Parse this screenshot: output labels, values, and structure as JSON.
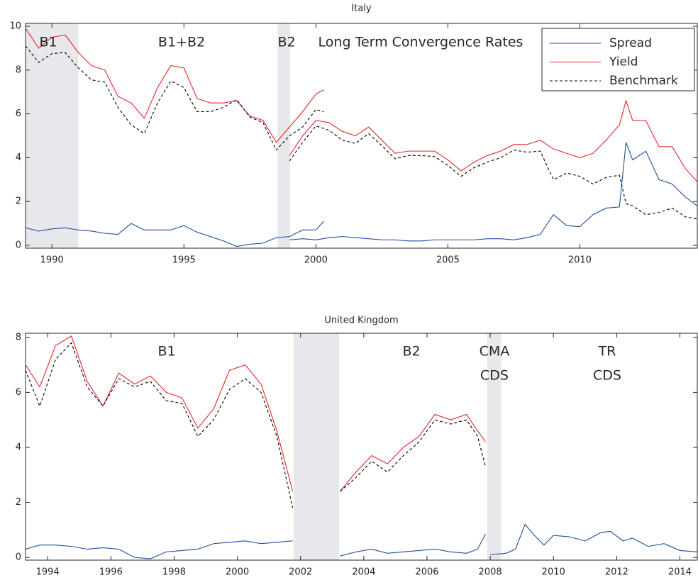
{
  "chart_data": [
    {
      "type": "line",
      "title": "Italy",
      "x": [
        1989.0,
        1989.5,
        1990.0,
        1990.5,
        1991.0,
        1991.5,
        1992.0,
        1992.5,
        1993.0,
        1993.5,
        1994.0,
        1994.5,
        1995.0,
        1995.5,
        1996.0,
        1996.5,
        1997.0,
        1997.5,
        1998.0,
        1998.5,
        1999.0,
        1999.5,
        2000.0,
        2000.3,
        null,
        1999.0,
        1999.5,
        2000.0,
        2000.5,
        2001.0,
        2001.5,
        2002.0,
        2002.5,
        2003.0,
        2003.5,
        2004.0,
        2004.5,
        2005.0,
        2005.5,
        2006.0,
        2006.5,
        2007.0,
        2007.5,
        2008.0,
        2008.5,
        2009.0,
        2009.5,
        2010.0,
        2010.5,
        2011.0,
        2011.5,
        2011.75,
        2012.0,
        2012.5,
        2013.0,
        2013.5,
        2014.0,
        2014.45
      ],
      "series": [
        {
          "name": "Spread",
          "color": "#1f4e9e",
          "linestyle": "solid",
          "values": [
            0.8,
            0.65,
            0.75,
            0.8,
            0.7,
            0.65,
            0.55,
            0.5,
            1.0,
            0.7,
            0.7,
            0.7,
            0.9,
            0.6,
            0.4,
            0.2,
            -0.05,
            0.05,
            0.1,
            0.35,
            0.4,
            0.7,
            0.7,
            1.1,
            null,
            0.25,
            0.3,
            0.25,
            0.35,
            0.4,
            0.35,
            0.3,
            0.25,
            0.25,
            0.2,
            0.2,
            0.25,
            0.25,
            0.25,
            0.25,
            0.3,
            0.3,
            0.25,
            0.35,
            0.5,
            1.4,
            0.9,
            0.85,
            1.4,
            1.7,
            1.75,
            4.7,
            3.9,
            4.3,
            3.0,
            2.8,
            2.2,
            1.8
          ]
        },
        {
          "name": "Yield",
          "color": "#e8262a",
          "linestyle": "solid",
          "values": [
            9.9,
            9.0,
            9.5,
            9.6,
            8.8,
            8.2,
            8.0,
            6.8,
            6.5,
            5.8,
            7.2,
            8.2,
            8.1,
            6.7,
            6.5,
            6.5,
            6.6,
            5.9,
            5.7,
            4.7,
            5.4,
            6.1,
            6.9,
            7.1,
            null,
            4.1,
            5.0,
            5.7,
            5.6,
            5.2,
            5.0,
            5.4,
            4.8,
            4.2,
            4.3,
            4.3,
            4.3,
            3.9,
            3.4,
            3.8,
            4.1,
            4.3,
            4.6,
            4.6,
            4.8,
            4.4,
            4.2,
            4.0,
            4.2,
            4.8,
            5.5,
            6.6,
            5.7,
            5.7,
            4.5,
            4.5,
            3.5,
            2.9
          ]
        },
        {
          "name": "Benchmark",
          "color": "#000000",
          "linestyle": "dashed",
          "values": [
            9.1,
            8.35,
            8.75,
            8.8,
            8.1,
            7.55,
            7.45,
            6.3,
            5.5,
            5.1,
            6.5,
            7.5,
            7.2,
            6.1,
            6.1,
            6.3,
            6.65,
            5.85,
            5.6,
            4.35,
            5.0,
            5.4,
            6.2,
            6.1,
            null,
            3.85,
            4.7,
            5.45,
            5.25,
            4.8,
            4.65,
            5.1,
            4.55,
            3.95,
            4.1,
            4.1,
            4.05,
            3.65,
            3.15,
            3.55,
            3.8,
            4.0,
            4.35,
            4.25,
            4.3,
            3.0,
            3.3,
            3.15,
            2.8,
            3.1,
            3.2,
            1.9,
            1.8,
            1.4,
            1.5,
            1.7,
            1.3,
            1.2
          ]
        }
      ],
      "xlim": [
        1989.0,
        2014.45
      ],
      "xticks": [
        1990,
        1995,
        2000,
        2005,
        2010
      ],
      "ylim": [
        -0.13,
        10.13
      ],
      "yticks": [
        0,
        2,
        4,
        6,
        8,
        10
      ],
      "shaded": [
        [
          1989.0,
          1991.0
        ],
        [
          1998.55,
          1999.02
        ]
      ],
      "shade_color": "#e8e8ec",
      "annotations": [
        "B1",
        "B1+B2",
        "B2",
        "Long Term Convergence Rates"
      ],
      "legend": "upper right"
    },
    {
      "type": "line",
      "title": "United Kingdom",
      "x": [
        1993.3,
        1993.75,
        1994.25,
        1994.75,
        1995.25,
        1995.75,
        1996.25,
        1996.75,
        1997.25,
        1997.75,
        1998.25,
        1998.75,
        1999.25,
        1999.75,
        2000.25,
        2000.75,
        2001.25,
        2001.75,
        null,
        2003.25,
        2003.75,
        2004.25,
        2004.75,
        2005.25,
        2005.75,
        2006.25,
        2006.75,
        2007.25,
        2007.6,
        2007.85,
        null,
        2008.0,
        2008.5,
        2008.8,
        2009.1,
        2009.4,
        2009.7,
        2010.0,
        2010.5,
        2011.0,
        2011.5,
        2011.8,
        2012.2,
        2012.5,
        2013.0,
        2013.5,
        2014.0,
        2014.55
      ],
      "series": [
        {
          "color": "#1f4e9e",
          "linestyle": "solid",
          "values": [
            0.3,
            0.45,
            0.45,
            0.4,
            0.3,
            0.35,
            0.3,
            0.0,
            -0.05,
            0.2,
            0.25,
            0.3,
            0.5,
            0.55,
            0.6,
            0.5,
            0.55,
            0.6,
            null,
            0.05,
            0.2,
            0.3,
            0.15,
            0.2,
            0.25,
            0.3,
            0.2,
            0.15,
            0.3,
            0.85,
            null,
            0.1,
            0.15,
            0.3,
            1.2,
            0.8,
            0.45,
            0.8,
            0.75,
            0.6,
            0.9,
            0.95,
            0.6,
            0.7,
            0.4,
            0.5,
            0.25,
            0.2
          ]
        },
        {
          "color": "#e8262a",
          "linestyle": "solid",
          "values": [
            7.0,
            6.2,
            7.7,
            8.05,
            6.4,
            5.5,
            6.7,
            6.3,
            6.6,
            6.0,
            5.8,
            4.7,
            5.4,
            6.8,
            7.0,
            6.3,
            4.6,
            2.4,
            null,
            2.4,
            3.1,
            3.7,
            3.4,
            4.0,
            4.4,
            5.2,
            5.0,
            5.2,
            4.6,
            4.2,
            null,
            null,
            null,
            null,
            null,
            null,
            null,
            null,
            null,
            null,
            null,
            null,
            null,
            null,
            null,
            null,
            null,
            null
          ]
        },
        {
          "color": "#000000",
          "linestyle": "dashed",
          "values": [
            6.8,
            5.5,
            7.2,
            7.8,
            6.2,
            5.5,
            6.5,
            6.2,
            6.4,
            5.7,
            5.6,
            4.4,
            5.0,
            6.1,
            6.5,
            6.0,
            4.4,
            1.8,
            null,
            2.4,
            2.9,
            3.5,
            3.1,
            3.7,
            4.2,
            5.0,
            4.85,
            5.0,
            4.4,
            3.3,
            null,
            null,
            null,
            null,
            null,
            null,
            null,
            null,
            null,
            null,
            null,
            null,
            null,
            null,
            null,
            null,
            null,
            null
          ]
        }
      ],
      "xlim": [
        1993.3,
        2014.55
      ],
      "xticks": [
        1994,
        1996,
        1998,
        2000,
        2002,
        2004,
        2006,
        2008,
        2010,
        2012,
        2014
      ],
      "ylim": [
        -0.1,
        8.15
      ],
      "yticks": [
        0,
        2,
        4,
        6,
        8
      ],
      "shaded": [
        [
          2001.78,
          2003.22
        ],
        [
          2007.9,
          2008.35
        ]
      ],
      "shade_color": "#e8e8ec",
      "annotations": [
        "B1",
        "B2",
        "CMA",
        "CDS",
        "TR",
        "CDS"
      ]
    }
  ]
}
